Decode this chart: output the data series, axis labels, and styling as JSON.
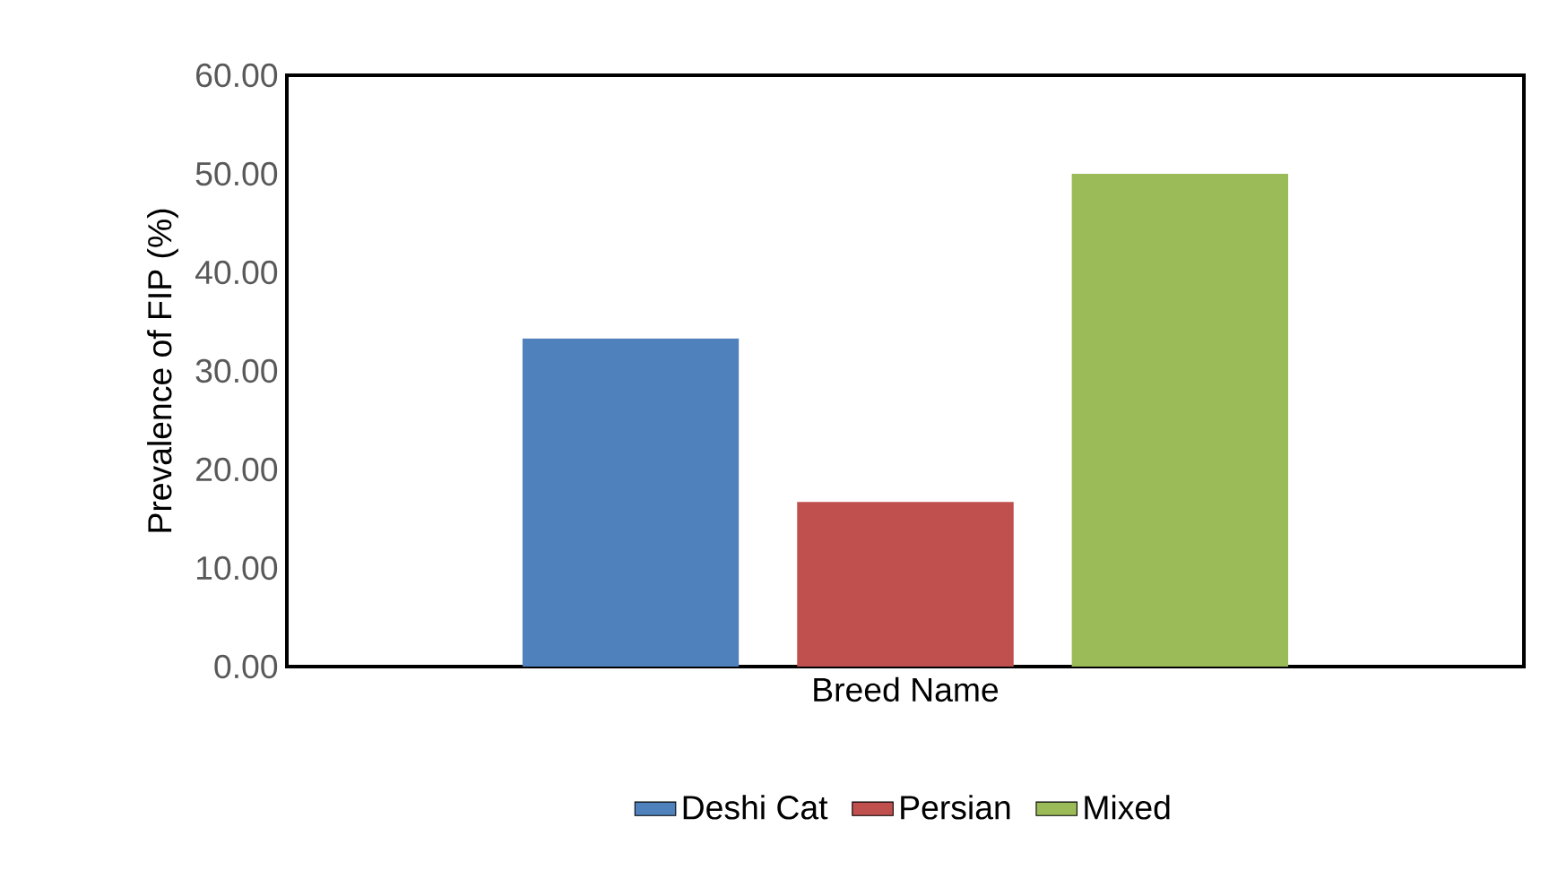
{
  "chart_data": {
    "type": "bar",
    "ylabel": "Prevalence of FIP (%)",
    "xlabel": "Breed Name",
    "categories": [
      null
    ],
    "series": [
      {
        "name": "Deshi Cat",
        "color": "#4f81bd",
        "values": [
          33.3
        ]
      },
      {
        "name": "Persian",
        "color": "#c0504d",
        "values": [
          16.7
        ]
      },
      {
        "name": "Mixed",
        "color": "#9bbb59",
        "values": [
          50.0
        ]
      }
    ],
    "ylim": [
      0,
      60
    ],
    "yticks": [
      {
        "value": 0,
        "label": "0.00"
      },
      {
        "value": 10,
        "label": "10.00"
      },
      {
        "value": 20,
        "label": "20.00"
      },
      {
        "value": 30,
        "label": "30.00"
      },
      {
        "value": 40,
        "label": "40.00"
      },
      {
        "value": 50,
        "label": "50.00"
      },
      {
        "value": 60,
        "label": "60.00"
      }
    ],
    "grid": false,
    "legend": "bottom"
  }
}
